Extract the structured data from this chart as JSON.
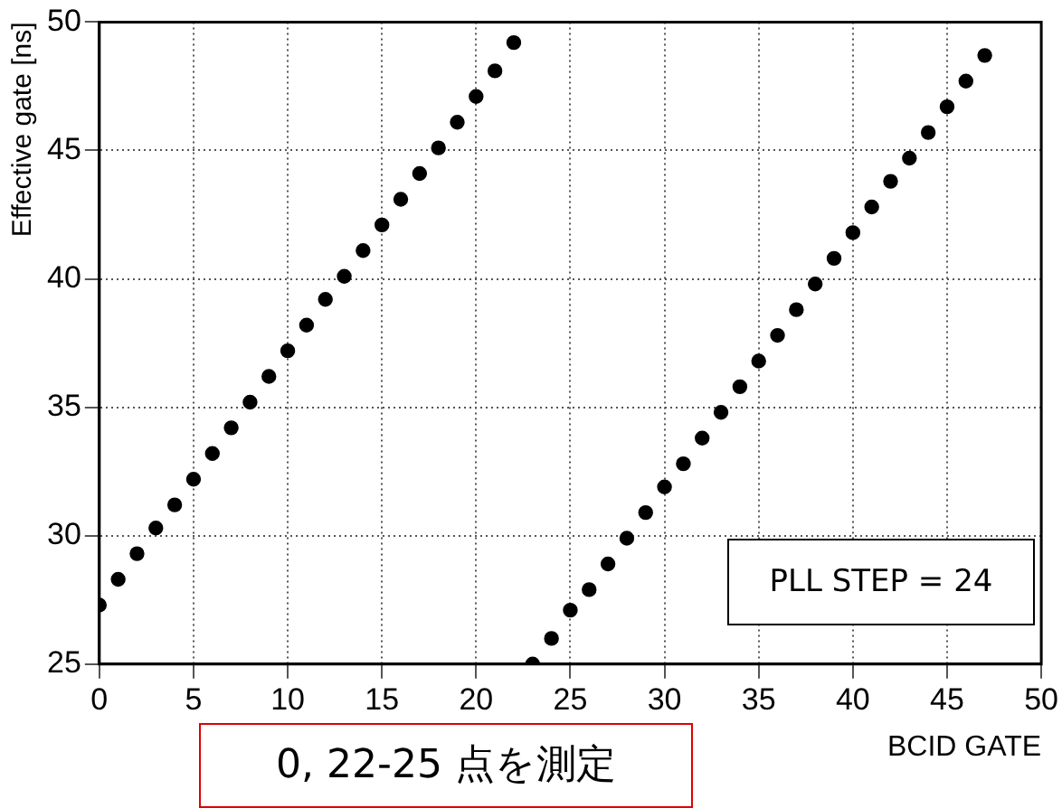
{
  "chart_data": {
    "type": "scatter",
    "xlabel": "BCID GATE",
    "ylabel": "Effective gate [ns]",
    "xlim": [
      0,
      50
    ],
    "xticks": [
      0,
      5,
      10,
      15,
      20,
      25,
      30,
      35,
      40,
      45,
      50
    ],
    "ylim": [
      25,
      50
    ],
    "yticks": [
      25,
      30,
      35,
      40,
      45,
      50
    ],
    "grid": true,
    "legend": false,
    "marker": "circle",
    "series": [
      {
        "color": "#000000",
        "x": [
          0,
          1,
          2,
          3,
          4,
          5,
          6,
          7,
          8,
          9,
          10,
          11,
          12,
          13,
          14,
          15,
          16,
          17,
          18,
          19,
          20,
          21,
          22,
          23,
          24,
          25,
          26,
          27,
          28,
          29,
          30,
          31,
          32,
          33,
          34,
          35,
          36,
          37,
          38,
          39,
          40,
          41,
          42,
          43,
          44,
          45,
          46,
          47
        ],
        "values": [
          27.3,
          28.3,
          29.3,
          30.3,
          31.2,
          32.2,
          33.2,
          34.2,
          35.2,
          36.2,
          37.2,
          38.2,
          39.2,
          40.1,
          41.1,
          42.1,
          43.1,
          44.1,
          45.1,
          46.1,
          47.1,
          48.1,
          49.2,
          25.0,
          26.0,
          27.1,
          27.9,
          28.9,
          29.9,
          30.9,
          31.9,
          32.8,
          33.8,
          34.8,
          35.8,
          36.8,
          37.8,
          38.8,
          39.8,
          40.8,
          41.8,
          42.8,
          43.8,
          44.7,
          45.7,
          46.7,
          47.7,
          48.7
        ]
      }
    ],
    "annotations": [
      "PLL STEP = 24",
      "0, 22-25 点を測定"
    ]
  }
}
